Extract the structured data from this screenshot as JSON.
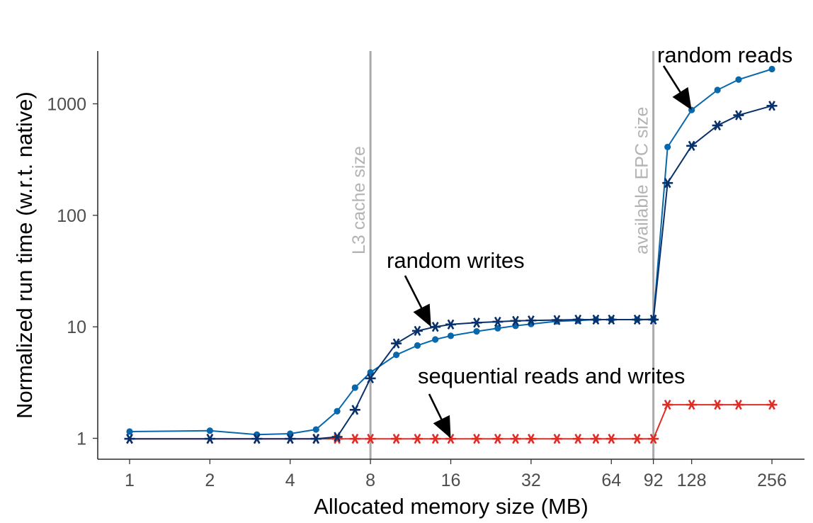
{
  "chart_data": {
    "type": "line",
    "title": "",
    "xlabel": "Allocated memory size (MB)",
    "ylabel": "Normalized run time (w.r.t. native)",
    "x_scale": "log2",
    "y_scale": "log10",
    "xlim": [
      1,
      256
    ],
    "ylim": [
      0.65,
      3000
    ],
    "x_ticks": [
      1,
      2,
      4,
      8,
      16,
      32,
      64,
      92,
      128,
      256
    ],
    "x_tick_labels": [
      "1",
      "2",
      "4",
      "8",
      "16",
      "32",
      "64",
      "92",
      "128",
      "256"
    ],
    "y_ticks": [
      1,
      10,
      100,
      1000
    ],
    "y_tick_labels": [
      "1",
      "10",
      "100",
      "1000"
    ],
    "grid": false,
    "legend": "none",
    "colors": {
      "random_reads": "#0868ac",
      "random_writes": "#08306b",
      "sequential": "#de2d26",
      "reference_lines": "#aaaaaa"
    },
    "reference_lines": [
      {
        "x": 8,
        "label": "L3 cache size"
      },
      {
        "x": 92,
        "label": "available EPC size"
      }
    ],
    "annotations": [
      {
        "text": "random reads",
        "points_to": [
          128,
          880
        ]
      },
      {
        "text": "random writes",
        "points_to": [
          13.5,
          10
        ]
      },
      {
        "text": "sequential reads and writes",
        "points_to": [
          16,
          1
        ]
      }
    ],
    "series": [
      {
        "key": "random_reads",
        "marker": "dot",
        "x": [
          1,
          2,
          3,
          4,
          5,
          6,
          7,
          8,
          10,
          12,
          14,
          16,
          20,
          24,
          28,
          32,
          40,
          48,
          56,
          64,
          80,
          92,
          104,
          128,
          160,
          192,
          256
        ],
        "y": [
          1.15,
          1.17,
          1.08,
          1.1,
          1.2,
          1.75,
          2.85,
          3.9,
          5.6,
          6.8,
          7.7,
          8.3,
          9.1,
          9.7,
          10.2,
          10.6,
          11.2,
          11.4,
          11.6,
          11.6,
          11.6,
          11.7,
          410,
          880,
          1330,
          1650,
          2050
        ]
      },
      {
        "key": "random_writes",
        "marker": "asterisk",
        "x": [
          1,
          2,
          3,
          4,
          5,
          6,
          7,
          8,
          10,
          12,
          14,
          16,
          20,
          24,
          28,
          32,
          40,
          48,
          56,
          64,
          80,
          92,
          104,
          128,
          160,
          192,
          256
        ],
        "y": [
          0.99,
          0.99,
          0.99,
          0.99,
          0.99,
          1.03,
          1.8,
          3.45,
          7.1,
          9.2,
          10.0,
          10.5,
          10.9,
          11.1,
          11.3,
          11.4,
          11.5,
          11.6,
          11.6,
          11.6,
          11.6,
          11.6,
          195,
          420,
          640,
          790,
          960
        ]
      },
      {
        "key": "sequential",
        "marker": "asterisk",
        "x": [
          1,
          2,
          3,
          4,
          5,
          6,
          7,
          8,
          10,
          12,
          14,
          16,
          20,
          24,
          28,
          32,
          40,
          48,
          56,
          64,
          80,
          92,
          104,
          128,
          160,
          192,
          256
        ],
        "y": [
          0.99,
          0.99,
          0.99,
          0.99,
          0.99,
          0.99,
          0.99,
          0.99,
          0.99,
          0.99,
          0.99,
          0.99,
          0.99,
          0.99,
          0.99,
          0.99,
          0.99,
          0.99,
          0.99,
          0.99,
          0.99,
          0.99,
          2.0,
          2.0,
          2.0,
          2.0,
          2.0
        ]
      }
    ]
  }
}
